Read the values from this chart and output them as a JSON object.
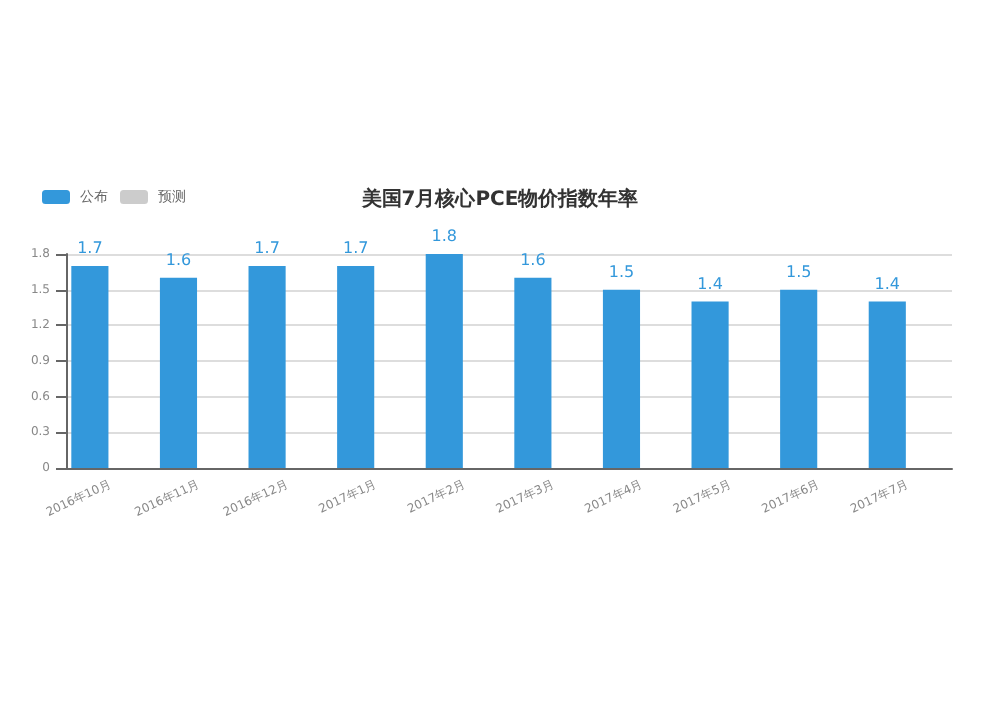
{
  "chart_data": {
    "type": "bar",
    "title": "美国7月核心PCE物价指数年率",
    "categories": [
      "2016年10月",
      "2016年11月",
      "2016年12月",
      "2017年1月",
      "2017年2月",
      "2017年3月",
      "2017年4月",
      "2017年5月",
      "2017年6月",
      "2017年7月"
    ],
    "series": [
      {
        "name": "公布",
        "color": "#3398db",
        "values": [
          1.7,
          1.6,
          1.7,
          1.7,
          1.8,
          1.6,
          1.5,
          1.4,
          1.5,
          1.4
        ]
      },
      {
        "name": "预测",
        "color": "#cccccc",
        "values": [
          null,
          null,
          null,
          null,
          null,
          null,
          null,
          null,
          null,
          null
        ]
      }
    ],
    "ylim": [
      0,
      1.8
    ],
    "yticks": [
      0,
      0.3,
      0.6,
      0.9,
      1.2,
      1.5,
      1.8
    ],
    "grid": "y",
    "legend": "top left",
    "data_labels": true
  }
}
